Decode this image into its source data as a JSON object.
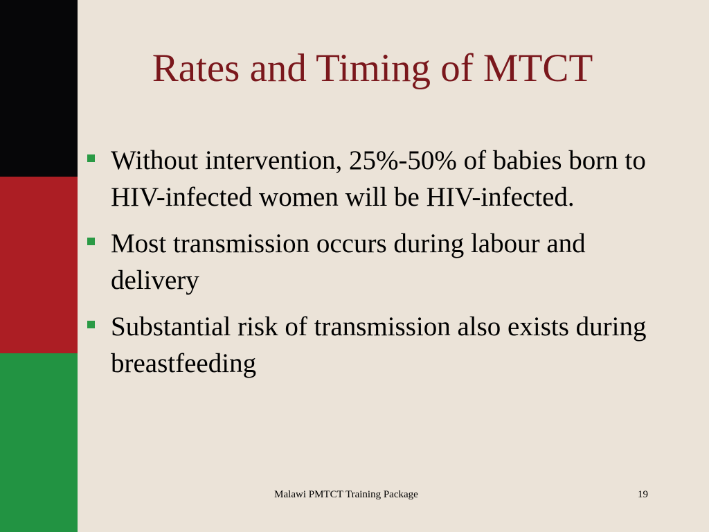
{
  "slide": {
    "title": "Rates and Timing of MTCT",
    "bullets": [
      {
        "text": "Without intervention, 25%-50% of babies born to HIV-infected women will be HIV-infected."
      },
      {
        "text": "Most transmission occurs during labour and delivery"
      },
      {
        "text": "Substantial risk of transmission also exists during breastfeeding"
      }
    ],
    "footer": "Malawi PMTCT Training Package",
    "page_number": "19"
  },
  "colors": {
    "background": "#ebe3d8",
    "title": "#7a171c",
    "bullet_marker": "#2a9a45",
    "flag_black": "#060608",
    "flag_red": "#ac1e24",
    "flag_green": "#229342"
  },
  "icons": {
    "bullet_marker": "green-square-bullet-icon"
  }
}
